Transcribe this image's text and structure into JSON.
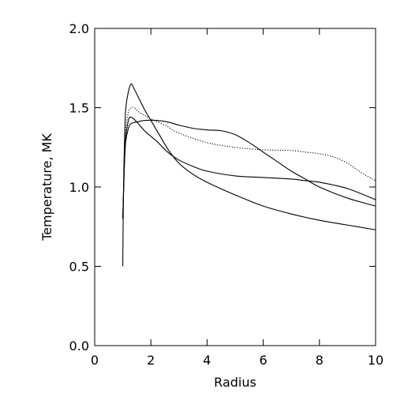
{
  "chart_data": {
    "type": "line",
    "xlabel": "Radius",
    "ylabel": "Temperature, MK",
    "xlim": [
      0,
      10
    ],
    "ylim": [
      0,
      2.0
    ],
    "xticks": [
      0,
      2,
      4,
      6,
      8,
      10
    ],
    "xtick_labels": [
      "0",
      "2",
      "4",
      "6",
      "8",
      "10"
    ],
    "yticks": [
      0.0,
      0.5,
      1.0,
      1.5,
      2.0
    ],
    "ytick_labels": [
      "0.0",
      "0.5",
      "1.0",
      "1.5",
      "2.0"
    ],
    "grid": false,
    "legend": "none",
    "series": [
      {
        "style": "solid",
        "x": [
          1.0,
          1.02,
          1.05,
          1.1,
          1.2,
          1.3,
          1.4,
          1.6,
          1.8,
          2.0,
          2.3,
          2.6,
          3.0,
          3.5,
          4.0,
          5.0,
          6.0,
          7.0,
          8.0,
          9.0,
          10.0
        ],
        "y": [
          0.5,
          0.9,
          1.2,
          1.48,
          1.6,
          1.65,
          1.62,
          1.55,
          1.48,
          1.42,
          1.33,
          1.24,
          1.15,
          1.08,
          1.03,
          0.95,
          0.88,
          0.83,
          0.79,
          0.76,
          0.73
        ]
      },
      {
        "style": "solid",
        "x": [
          1.0,
          1.05,
          1.1,
          1.2,
          1.3,
          1.5,
          1.8,
          2.2,
          2.6,
          3.0,
          3.5,
          4.0,
          4.5,
          5.0,
          5.5,
          6.0,
          6.5,
          7.0,
          7.5,
          8.0,
          9.0,
          10.0
        ],
        "y": [
          0.8,
          1.1,
          1.28,
          1.37,
          1.4,
          1.41,
          1.42,
          1.42,
          1.41,
          1.39,
          1.37,
          1.36,
          1.355,
          1.33,
          1.28,
          1.22,
          1.16,
          1.1,
          1.05,
          1.0,
          0.93,
          0.88
        ]
      },
      {
        "style": "solid",
        "x": [
          1.0,
          1.05,
          1.1,
          1.2,
          1.3,
          1.5,
          1.8,
          2.2,
          2.6,
          3.0,
          3.5,
          4.0,
          5.0,
          6.0,
          7.0,
          7.5,
          8.0,
          9.0,
          10.0
        ],
        "y": [
          0.8,
          1.1,
          1.3,
          1.42,
          1.44,
          1.41,
          1.35,
          1.29,
          1.22,
          1.17,
          1.13,
          1.1,
          1.07,
          1.06,
          1.05,
          1.04,
          1.03,
          0.99,
          0.92
        ]
      },
      {
        "style": "dotted",
        "x": [
          1.0,
          1.05,
          1.1,
          1.2,
          1.3,
          1.4,
          1.6,
          2.0,
          2.5,
          3.0,
          4.0,
          5.0,
          6.0,
          7.0,
          7.5,
          8.0,
          8.5,
          9.0,
          9.5,
          10.0
        ],
        "y": [
          0.8,
          1.15,
          1.35,
          1.47,
          1.5,
          1.5,
          1.47,
          1.43,
          1.39,
          1.34,
          1.28,
          1.25,
          1.235,
          1.23,
          1.22,
          1.21,
          1.19,
          1.15,
          1.09,
          1.04
        ]
      }
    ]
  }
}
